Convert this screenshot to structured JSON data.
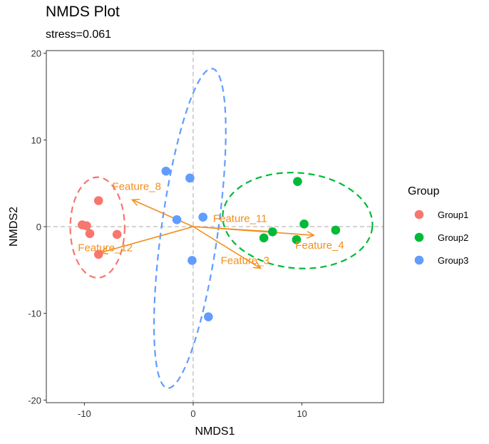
{
  "chart_data": {
    "type": "scatter",
    "title": "NMDS Plot",
    "subtitle": "stress=0.061",
    "xlabel": "NMDS1",
    "ylabel": "NMDS2",
    "xlim": [
      -13.5,
      17.5
    ],
    "ylim": [
      -20.3,
      20.3
    ],
    "xticks": [
      -10,
      0,
      10
    ],
    "yticks": [
      -20,
      -10,
      0,
      10,
      20
    ],
    "grid": false,
    "reference_lines": {
      "x": 0,
      "y": 0,
      "style": "dashed",
      "color": "#BBBBBB"
    },
    "legend": {
      "title": "Group",
      "position": "right"
    },
    "series": [
      {
        "name": "Group1",
        "color": "#F8766D",
        "points": [
          [
            -10.2,
            0.2
          ],
          [
            -9.8,
            0.1
          ],
          [
            -9.5,
            -0.8
          ],
          [
            -8.7,
            3.0
          ],
          [
            -8.7,
            -3.2
          ],
          [
            -7.0,
            -0.9
          ]
        ],
        "ellipse": {
          "cx": -8.8,
          "cy": -0.1,
          "rx": 2.5,
          "ry": 5.8,
          "angle": 0
        }
      },
      {
        "name": "Group2",
        "color": "#00BA38",
        "points": [
          [
            6.5,
            -1.3
          ],
          [
            7.3,
            -0.6
          ],
          [
            9.6,
            5.2
          ],
          [
            9.5,
            -1.5
          ],
          [
            10.2,
            0.3
          ],
          [
            13.1,
            -0.4
          ]
        ],
        "ellipse": {
          "cx": 9.6,
          "cy": 0.7,
          "rx": 6.9,
          "ry": 5.5,
          "angle": 5
        }
      },
      {
        "name": "Group3",
        "color": "#619CFF",
        "points": [
          [
            -2.5,
            6.4
          ],
          [
            -0.3,
            5.6
          ],
          [
            -1.5,
            0.8
          ],
          [
            0.9,
            1.1
          ],
          [
            -0.1,
            -3.9
          ],
          [
            1.4,
            -10.4
          ]
        ],
        "ellipse": {
          "cx": -0.3,
          "cy": -0.2,
          "rx": 2.6,
          "ry": 18.6,
          "angle": 8
        }
      }
    ],
    "vectors": [
      {
        "name": "Feature_8",
        "x": -5.6,
        "y": 3.1
      },
      {
        "name": "Feature_12",
        "x": -8.5,
        "y": -3.0
      },
      {
        "name": "Feature_11",
        "x": 7.6,
        "y": -0.6
      },
      {
        "name": "Feature_4",
        "x": 11.1,
        "y": -1.0
      },
      {
        "name": "Feature_3",
        "x": 6.2,
        "y": -4.8
      }
    ],
    "vector_color": "#F28E1C"
  }
}
